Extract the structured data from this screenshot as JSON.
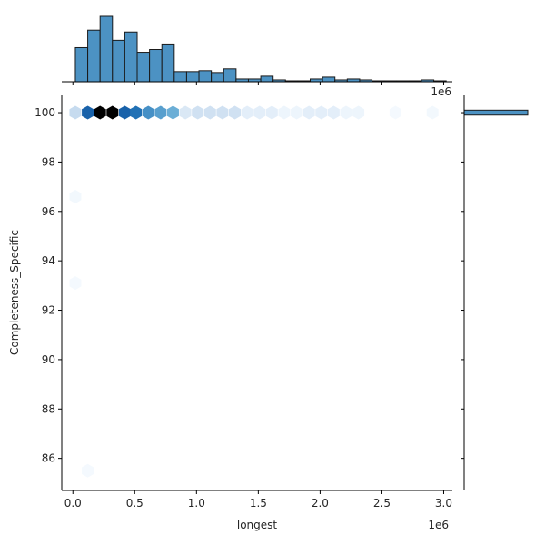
{
  "chart_data": {
    "type": "jointplot-hexbin",
    "xlabel": "longest",
    "ylabel": "Completeness_Specific",
    "x_offset_text": "1e6",
    "top_offset_text": "1e6",
    "x_ticks": [
      0.0,
      0.5,
      1.0,
      1.5,
      2.0,
      2.5,
      3.0
    ],
    "x_tick_labels": [
      "0.0",
      "0.5",
      "1.0",
      "1.5",
      "2.0",
      "2.5",
      "3.0"
    ],
    "y_ticks": [
      86,
      88,
      90,
      92,
      94,
      96,
      98,
      100
    ],
    "y_tick_labels": [
      "86",
      "88",
      "90",
      "92",
      "94",
      "96",
      "98",
      "100"
    ],
    "xlim": [
      -0.09,
      3.07
    ],
    "ylim": [
      84.7,
      100.7
    ],
    "colors": {
      "hist": "#4c92c3",
      "hist_edge": "#1a1a1a"
    },
    "hexbins": [
      {
        "x": 0.02,
        "y": 100,
        "count": 5
      },
      {
        "x": 0.12,
        "y": 100,
        "count": 15
      },
      {
        "x": 0.22,
        "y": 100,
        "count": 20
      },
      {
        "x": 0.32,
        "y": 100,
        "count": 20
      },
      {
        "x": 0.42,
        "y": 100,
        "count": 15
      },
      {
        "x": 0.51,
        "y": 100,
        "count": 14
      },
      {
        "x": 0.61,
        "y": 100,
        "count": 12
      },
      {
        "x": 0.71,
        "y": 100,
        "count": 11
      },
      {
        "x": 0.81,
        "y": 100,
        "count": 10
      },
      {
        "x": 0.91,
        "y": 100,
        "count": 3
      },
      {
        "x": 1.01,
        "y": 100,
        "count": 4
      },
      {
        "x": 1.11,
        "y": 100,
        "count": 4
      },
      {
        "x": 1.21,
        "y": 100,
        "count": 4
      },
      {
        "x": 1.31,
        "y": 100,
        "count": 4
      },
      {
        "x": 1.41,
        "y": 100,
        "count": 2
      },
      {
        "x": 1.51,
        "y": 100,
        "count": 2
      },
      {
        "x": 1.61,
        "y": 100,
        "count": 2
      },
      {
        "x": 1.71,
        "y": 100,
        "count": 1
      },
      {
        "x": 1.81,
        "y": 100,
        "count": 1
      },
      {
        "x": 1.91,
        "y": 100,
        "count": 2
      },
      {
        "x": 2.01,
        "y": 100,
        "count": 2
      },
      {
        "x": 2.11,
        "y": 100,
        "count": 2
      },
      {
        "x": 2.21,
        "y": 100,
        "count": 1
      },
      {
        "x": 2.31,
        "y": 100,
        "count": 1
      },
      {
        "x": 2.61,
        "y": 100,
        "count": 0.3
      },
      {
        "x": 2.91,
        "y": 100,
        "count": 0.5
      },
      {
        "x": 0.02,
        "y": 96.6,
        "count": 0.5
      },
      {
        "x": 0.02,
        "y": 93.1,
        "count": 0.3
      },
      {
        "x": 0.12,
        "y": 85.5,
        "count": 0.3
      }
    ],
    "x_hist": {
      "bin_width": 0.1,
      "bins": [
        {
          "x0": 0.02,
          "count": 37
        },
        {
          "x0": 0.12,
          "count": 56
        },
        {
          "x0": 0.22,
          "count": 71
        },
        {
          "x0": 0.32,
          "count": 45
        },
        {
          "x0": 0.42,
          "count": 54
        },
        {
          "x0": 0.52,
          "count": 32
        },
        {
          "x0": 0.62,
          "count": 35
        },
        {
          "x0": 0.72,
          "count": 41
        },
        {
          "x0": 0.82,
          "count": 11
        },
        {
          "x0": 0.92,
          "count": 11
        },
        {
          "x0": 1.02,
          "count": 12
        },
        {
          "x0": 1.12,
          "count": 10
        },
        {
          "x0": 1.22,
          "count": 14
        },
        {
          "x0": 1.32,
          "count": 3
        },
        {
          "x0": 1.42,
          "count": 3
        },
        {
          "x0": 1.52,
          "count": 6
        },
        {
          "x0": 1.62,
          "count": 2
        },
        {
          "x0": 1.72,
          "count": 1
        },
        {
          "x0": 1.82,
          "count": 1
        },
        {
          "x0": 1.92,
          "count": 3
        },
        {
          "x0": 2.02,
          "count": 5
        },
        {
          "x0": 2.12,
          "count": 2
        },
        {
          "x0": 2.22,
          "count": 3
        },
        {
          "x0": 2.32,
          "count": 2
        },
        {
          "x0": 2.42,
          "count": 1
        },
        {
          "x0": 2.52,
          "count": 1
        },
        {
          "x0": 2.62,
          "count": 1
        },
        {
          "x0": 2.72,
          "count": 1
        },
        {
          "x0": 2.82,
          "count": 2
        },
        {
          "x0": 2.92,
          "count": 1
        }
      ]
    },
    "y_hist": {
      "bins": [
        {
          "y0": 99.9,
          "y1": 100.1,
          "count": 1
        }
      ]
    }
  }
}
